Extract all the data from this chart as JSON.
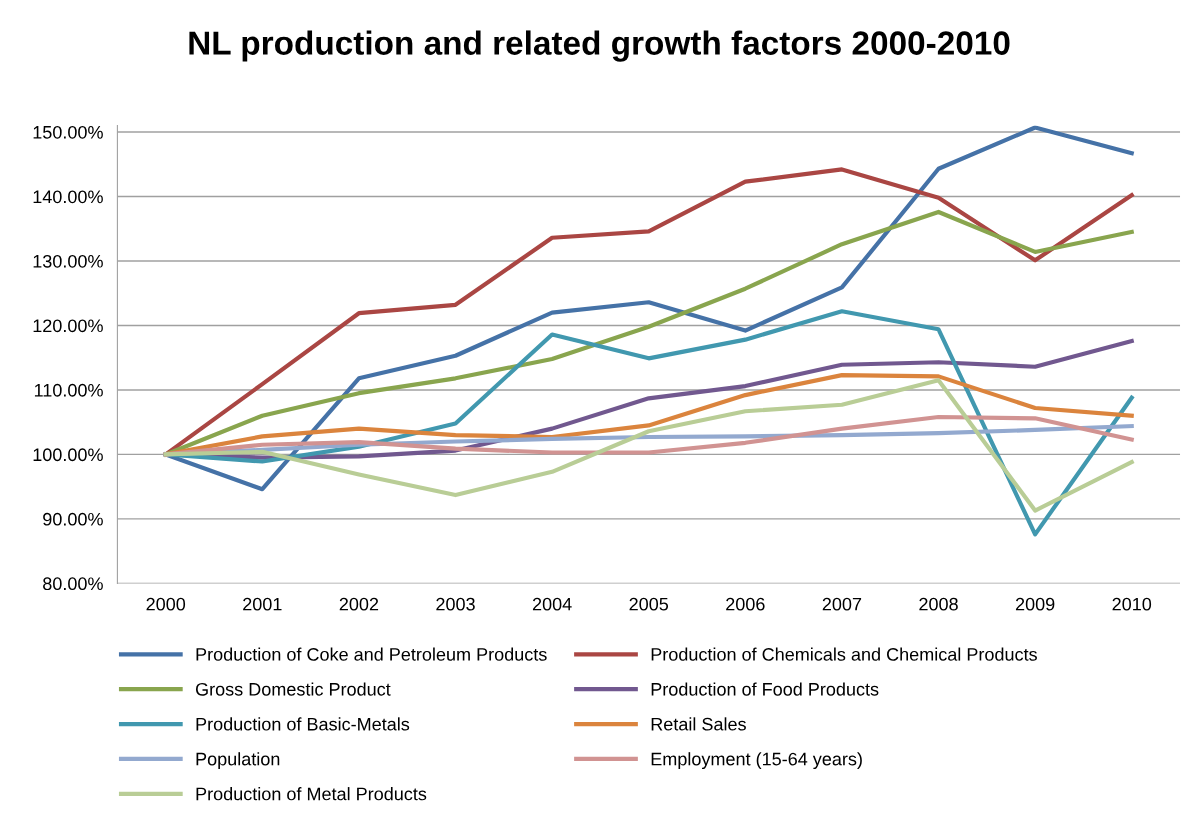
{
  "chart_data": {
    "type": "line",
    "title": "NL production and related growth factors 2000-2010",
    "categories": [
      "2000",
      "2001",
      "2002",
      "2003",
      "2004",
      "2005",
      "2006",
      "2007",
      "2008",
      "2009",
      "2010"
    ],
    "series": [
      {
        "name": "Production of Coke and Petroleum Products",
        "color": "#4572a7",
        "values": [
          100,
          94.6,
          111.8,
          115.3,
          122.0,
          123.6,
          119.2,
          125.9,
          144.3,
          150.7,
          146.7
        ]
      },
      {
        "name": "Production of Chemicals and Chemical Products",
        "color": "#aa4643",
        "values": [
          100,
          110.9,
          121.9,
          123.2,
          133.6,
          134.6,
          142.3,
          144.2,
          139.8,
          130.1,
          140.2
        ]
      },
      {
        "name": "Gross Domestic Product",
        "color": "#89a54e",
        "values": [
          100,
          106.0,
          109.5,
          111.8,
          114.8,
          119.8,
          125.7,
          132.6,
          137.6,
          131.4,
          134.5
        ]
      },
      {
        "name": "Production of Food Products",
        "color": "#71588f",
        "values": [
          100,
          99.5,
          99.7,
          100.6,
          104.0,
          108.7,
          110.6,
          113.9,
          114.3,
          113.6,
          117.6
        ]
      },
      {
        "name": "Production of Basic-Metals",
        "color": "#4198af",
        "values": [
          100,
          98.9,
          101.2,
          104.8,
          118.6,
          114.9,
          117.8,
          122.2,
          119.4,
          87.6,
          108.8
        ]
      },
      {
        "name": "Retail Sales",
        "color": "#db843d",
        "values": [
          100,
          102.8,
          104.0,
          103.0,
          102.7,
          104.5,
          109.2,
          112.3,
          112.1,
          107.2,
          106.0
        ]
      },
      {
        "name": "Population",
        "color": "#93a9cf",
        "values": [
          100,
          100.7,
          101.5,
          102.0,
          102.4,
          102.7,
          102.8,
          103.0,
          103.3,
          103.8,
          104.4
        ]
      },
      {
        "name": "Employment (15-64 years)",
        "color": "#d19392",
        "values": [
          100,
          101.5,
          101.9,
          100.9,
          100.3,
          100.3,
          101.8,
          104.0,
          105.8,
          105.6,
          102.3
        ]
      },
      {
        "name": "Production of Metal Products",
        "color": "#b9cd96",
        "values": [
          100,
          100.4,
          96.9,
          93.7,
          97.3,
          103.6,
          106.7,
          107.7,
          111.5,
          91.3,
          98.8
        ]
      }
    ],
    "ylim": [
      80,
      151
    ],
    "yticks": [
      {
        "value": 80,
        "label": "80.00%"
      },
      {
        "value": 90,
        "label": "90.00%"
      },
      {
        "value": 100,
        "label": "100.00%"
      },
      {
        "value": 110,
        "label": "110.00%"
      },
      {
        "value": 120,
        "label": "120.00%"
      },
      {
        "value": 130,
        "label": "130.00%"
      },
      {
        "value": 140,
        "label": "140.00%"
      },
      {
        "value": 150,
        "label": "150.00%"
      }
    ],
    "grid": "y",
    "legend": "bottom",
    "marker": "none",
    "line_style": "solid"
  }
}
